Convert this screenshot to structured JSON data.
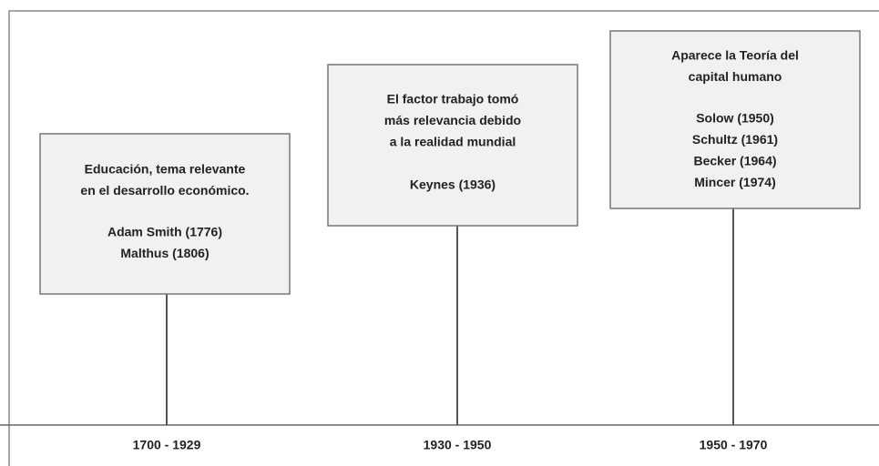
{
  "events": [
    {
      "period": "1700 - 1929",
      "description": [
        "Educación, tema relevante",
        "en el desarrollo económico."
      ],
      "authors": [
        "Adam Smith (1776)",
        "Malthus (1806)"
      ]
    },
    {
      "period": "1930 - 1950",
      "description": [
        "El factor trabajo tomó",
        "más relevancia debido",
        "a la realidad mundial"
      ],
      "authors": [
        "Keynes (1936)"
      ]
    },
    {
      "period": "1950 - 1970",
      "description": [
        "Aparece la Teoría del",
        "capital humano"
      ],
      "authors": [
        "Solow (1950)",
        "Schultz (1961)",
        "Becker (1964)",
        "Mincer (1974)"
      ]
    }
  ]
}
